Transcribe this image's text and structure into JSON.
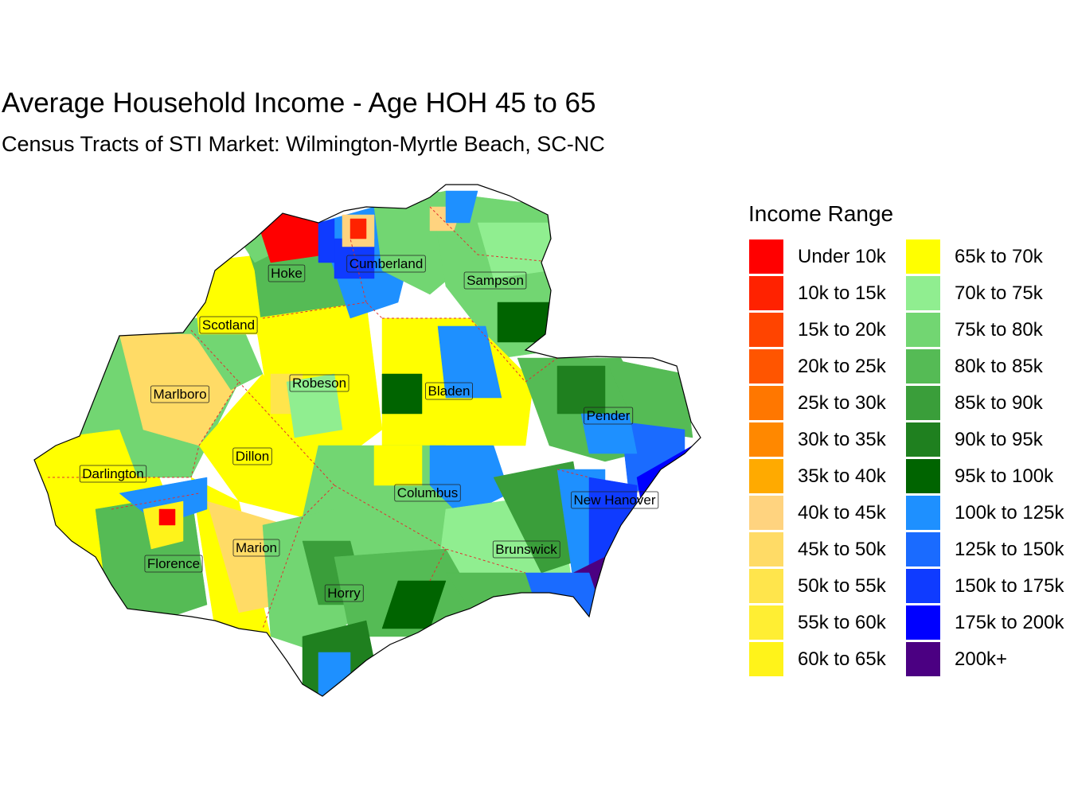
{
  "title": "Average Household Income - Age HOH 45 to 65",
  "subtitle": "Census Tracts of STI Market: Wilmington-Myrtle Beach, SC-NC",
  "legend": {
    "title": "Income Range",
    "items": [
      {
        "label": "Under 10k",
        "color": "#FF0000"
      },
      {
        "label": "10k to 15k",
        "color": "#FF2200"
      },
      {
        "label": "15k to 20k",
        "color": "#FF4400"
      },
      {
        "label": "20k to 25k",
        "color": "#FF5500"
      },
      {
        "label": "25k to 30k",
        "color": "#FF7700"
      },
      {
        "label": "30k to 35k",
        "color": "#FF8800"
      },
      {
        "label": "35k to 40k",
        "color": "#FFAA00"
      },
      {
        "label": "40k to 45k",
        "color": "#FFD37F"
      },
      {
        "label": "45k to 50k",
        "color": "#FFDB66"
      },
      {
        "label": "50k to 55k",
        "color": "#FFE54C"
      },
      {
        "label": "55k to 60k",
        "color": "#FFEE33"
      },
      {
        "label": "60k to 65k",
        "color": "#FFF31A"
      },
      {
        "label": "65k to 70k",
        "color": "#FFFF00"
      },
      {
        "label": "70k to 75k",
        "color": "#90EE90"
      },
      {
        "label": "75k to 80k",
        "color": "#72D672"
      },
      {
        "label": "80k to 85k",
        "color": "#55BB55"
      },
      {
        "label": "85k to 90k",
        "color": "#3A9E3A"
      },
      {
        "label": "90k to 95k",
        "color": "#1F801F"
      },
      {
        "label": "95k to 100k",
        "color": "#006400"
      },
      {
        "label": "100k to 125k",
        "color": "#1E90FF"
      },
      {
        "label": "125k to 150k",
        "color": "#1A6BFF"
      },
      {
        "label": "150k to 175k",
        "color": "#0F3BFF"
      },
      {
        "label": "175k to 200k",
        "color": "#0000FF"
      },
      {
        "label": "200k+",
        "color": "#4B0082"
      }
    ]
  },
  "counties": [
    "Hoke",
    "Cumberland",
    "Sampson",
    "Scotland",
    "Robeson",
    "Bladen",
    "Marlboro",
    "Pender",
    "Dillon",
    "Darlington",
    "Columbus",
    "New Hanover",
    "Florence",
    "Marion",
    "Brunswick",
    "Horry"
  ]
}
